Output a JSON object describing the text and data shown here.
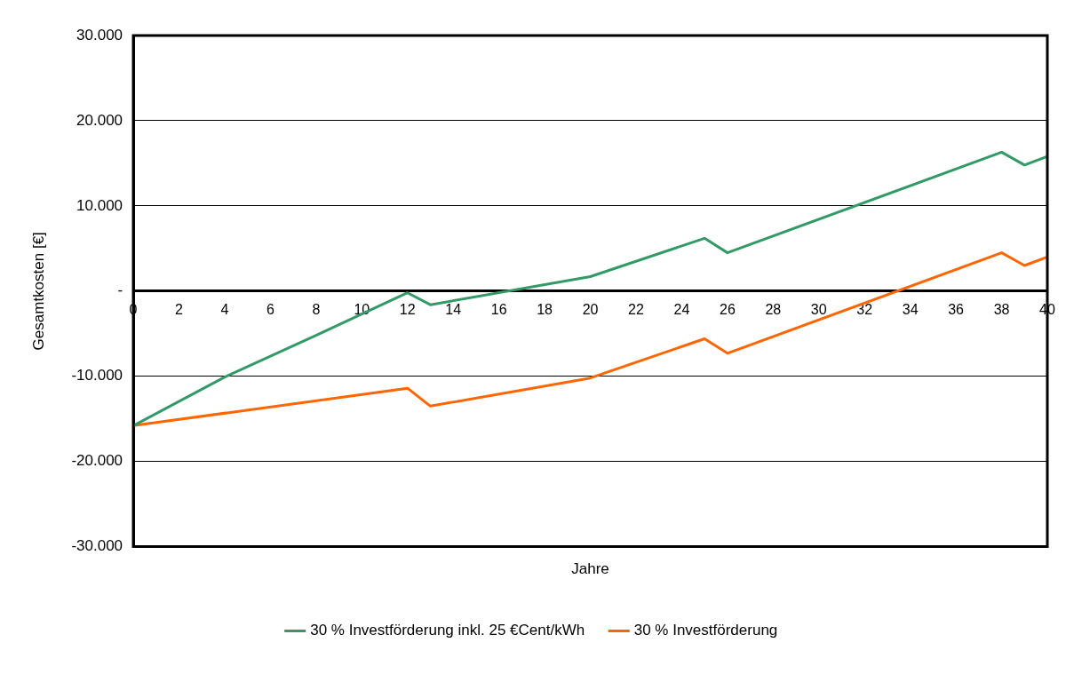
{
  "chart_data": {
    "type": "line",
    "xlabel": "Jahre",
    "ylabel": "Gesamtkosten [€]",
    "xlim": [
      0,
      40
    ],
    "xticks": [
      0,
      2,
      4,
      6,
      8,
      10,
      12,
      14,
      16,
      18,
      20,
      22,
      24,
      26,
      28,
      30,
      32,
      34,
      36,
      38,
      40
    ],
    "ylim": [
      -30000,
      30000
    ],
    "yticks": [
      {
        "value": -30000,
        "label": "-30.000"
      },
      {
        "value": -20000,
        "label": "-20.000"
      },
      {
        "value": -10000,
        "label": "-10.000"
      },
      {
        "value": 0,
        "label": "-"
      },
      {
        "value": 10000,
        "label": "10.000"
      },
      {
        "value": 20000,
        "label": "20.000"
      },
      {
        "value": 30000,
        "label": "30.000"
      }
    ],
    "grid": "y",
    "legend": "bottom",
    "marker": "none",
    "line_style": "solid",
    "series": [
      {
        "name": "30 % Investförderung inkl. 25 €Cent/kWh",
        "color": "#339966",
        "x": [
          0,
          4,
          8,
          12,
          13,
          20,
          25,
          26,
          38,
          39,
          40
        ],
        "values": [
          -15800,
          -10100,
          -5200,
          -200,
          -1600,
          1700,
          6200,
          4500,
          16300,
          14800,
          15800
        ]
      },
      {
        "name": "30 % Investförderung",
        "color": "#ff6600",
        "x": [
          0,
          12,
          13,
          20,
          25,
          26,
          38,
          39,
          40
        ],
        "values": [
          -15800,
          -11400,
          -13500,
          -10200,
          -5600,
          -7300,
          4500,
          3000,
          4000
        ]
      }
    ]
  }
}
